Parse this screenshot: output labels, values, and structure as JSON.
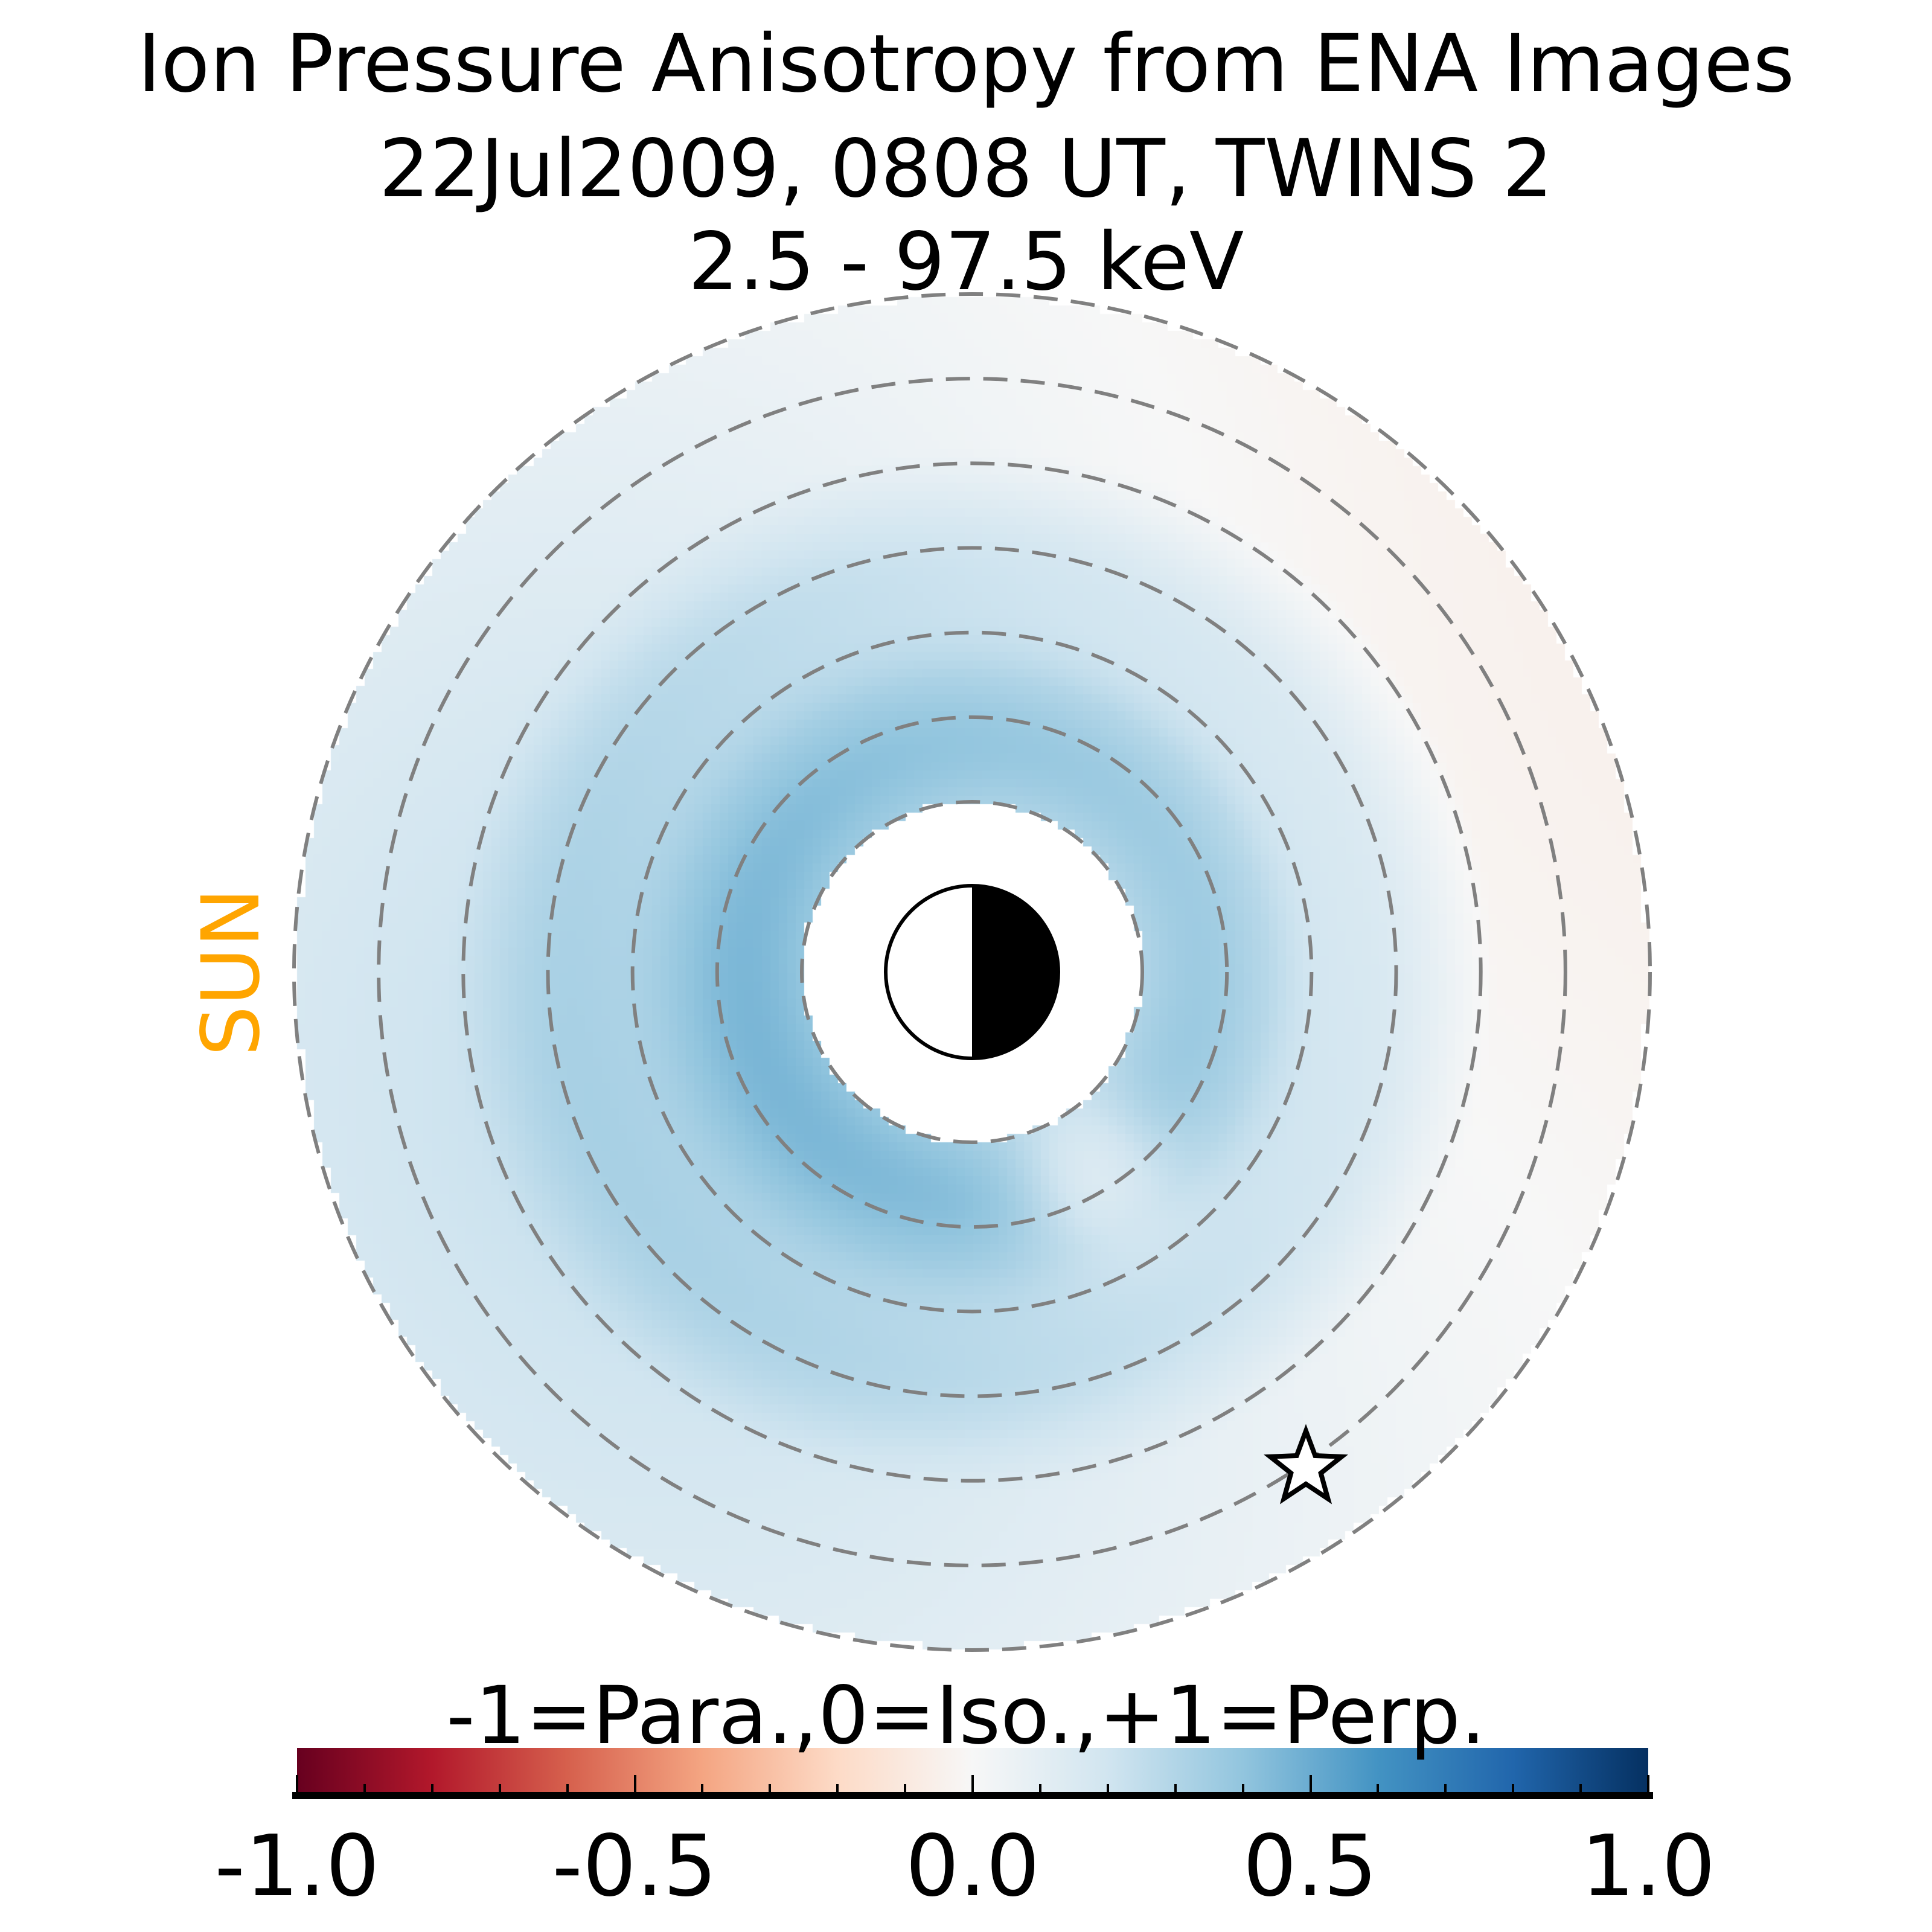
{
  "title": {
    "line1": "Ion Pressure Anisotropy from  ENA Images",
    "line2": "22Jul2009, 0808 UT,  TWINS 2",
    "line3": "2.5 - 97.5 keV"
  },
  "sun_label": "SUN",
  "colors": {
    "sun": "#FFA500",
    "grid": "#808080"
  },
  "chart_data": {
    "type": "heatmap",
    "projection": "polar equatorial map, Earth at center, Sun to the left",
    "title": "Ion Pressure Anisotropy from  ENA Images",
    "colormap": "RdBu",
    "colorbar": {
      "label": "-1=Para.,0=Iso.,+1=Perp.",
      "range": [
        -1.0,
        1.0
      ],
      "ticks": [
        -1.0,
        -0.5,
        0.0,
        0.5,
        1.0
      ],
      "tick_labels": [
        "-1.0",
        "-0.5",
        "0.0",
        "0.5",
        "1.0"
      ],
      "minor_tick_step": 0.1
    },
    "dashed_rings": 7,
    "value_summary": {
      "inner_ring_typical": 0.4,
      "dawn_dusk_outer_left": 0.3,
      "outer_upper_right": -0.03
    },
    "markers": [
      {
        "name": "spacecraft-star",
        "position": "lower-right, near outer ring"
      }
    ]
  }
}
